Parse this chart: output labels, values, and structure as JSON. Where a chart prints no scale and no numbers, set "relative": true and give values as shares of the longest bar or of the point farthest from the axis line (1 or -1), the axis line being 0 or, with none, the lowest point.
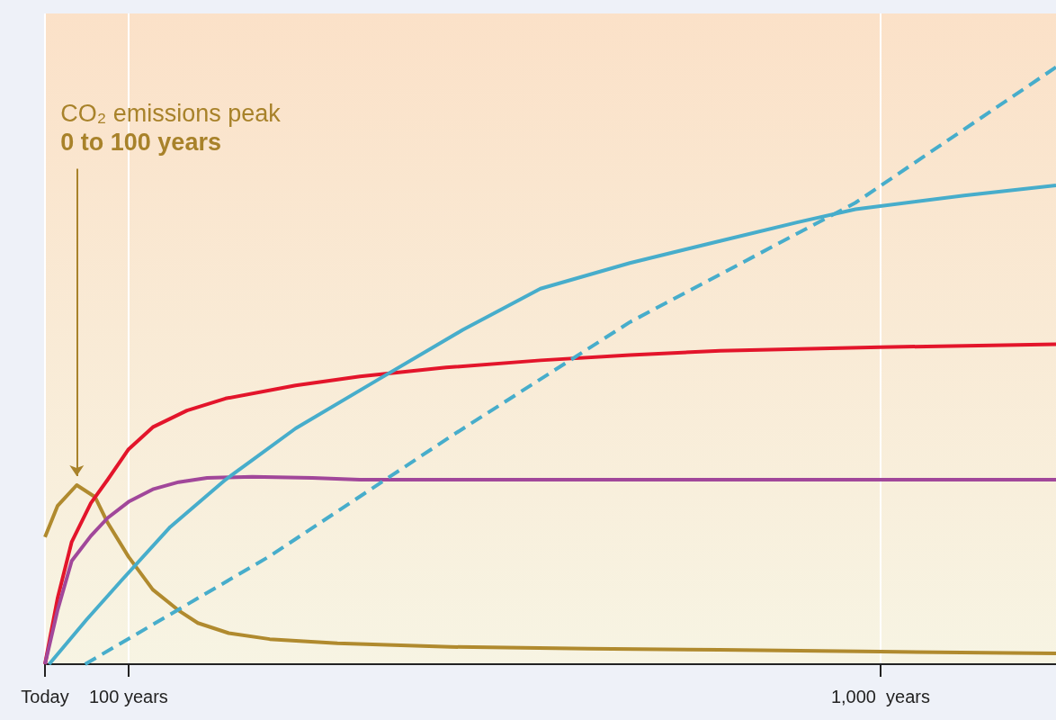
{
  "chart_data": {
    "type": "line",
    "relative": true,
    "marker": "none",
    "grid": "x",
    "xlim": [
      0,
      1210
    ],
    "xticks": [
      {
        "value": 0,
        "label": "Today"
      },
      {
        "value": 100,
        "label": "100 years"
      },
      {
        "value": 1000,
        "label": "1,000  years"
      }
    ],
    "tick_labels": "x",
    "annotations": [
      "CO₂ emissions peak",
      "0 to 100 years"
    ],
    "series": [
      {
        "color": "#b08a2e",
        "x": [
          0,
          15,
          38,
          60,
          75,
          100,
          129,
          160,
          183,
          220,
          269,
          350,
          485,
          650,
          808,
          1000,
          1210
        ],
        "values": [
          0.213,
          0.265,
          0.3,
          0.28,
          0.237,
          0.18,
          0.125,
          0.09,
          0.069,
          0.052,
          0.042,
          0.035,
          0.029,
          0.026,
          0.024,
          0.021,
          0.018
        ]
      },
      {
        "color": "#e3152b",
        "x": [
          0,
          15,
          32,
          55,
          75,
          100,
          129,
          170,
          216,
          300,
          377,
          480,
          593,
          700,
          808,
          1000,
          1210
        ],
        "values": [
          0,
          0.11,
          0.205,
          0.27,
          0.309,
          0.36,
          0.397,
          0.425,
          0.445,
          0.467,
          0.482,
          0.497,
          0.509,
          0.518,
          0.525,
          0.531,
          0.536
        ]
      },
      {
        "color": "#a1479a",
        "x": [
          0,
          15,
          32,
          55,
          75,
          100,
          129,
          160,
          194,
          248,
          320,
          377,
          600,
          900,
          1210
        ],
        "values": [
          0,
          0.09,
          0.173,
          0.215,
          0.245,
          0.272,
          0.293,
          0.305,
          0.312,
          0.314,
          0.312,
          0.309,
          0.309,
          0.309,
          0.309
        ]
      },
      {
        "color": "#47adcb",
        "x": [
          5,
          50,
          92,
          150,
          216,
          300,
          399,
          500,
          593,
          700,
          808,
          900,
          970,
          1100,
          1210
        ],
        "values": [
          0,
          0.075,
          0.141,
          0.23,
          0.309,
          0.395,
          0.477,
          0.56,
          0.629,
          0.672,
          0.709,
          0.74,
          0.762,
          0.785,
          0.802
        ]
      },
      {
        "color": "#47adcb",
        "line_style": "dashed",
        "x": [
          48,
          269,
          485,
          700,
          970,
          1210
        ],
        "values": [
          0,
          0.181,
          0.381,
          0.573,
          0.773,
          1.0
        ]
      }
    ]
  }
}
